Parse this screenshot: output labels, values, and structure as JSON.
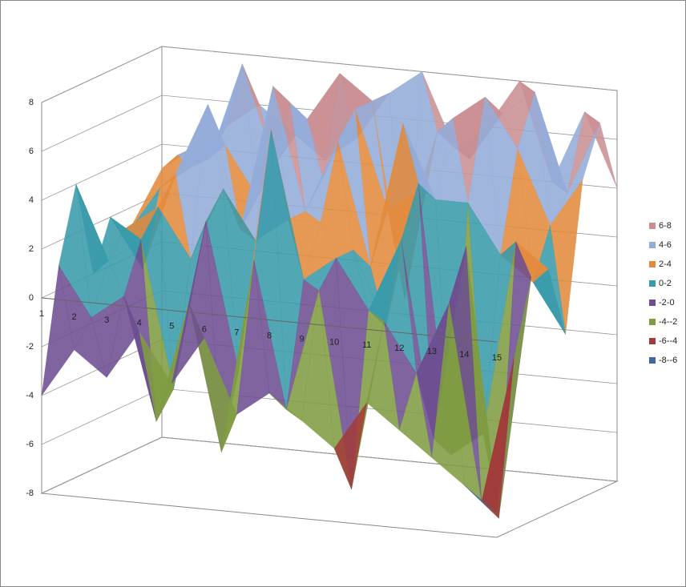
{
  "chart_data": {
    "type": "surface",
    "categories": [
      "1",
      "2",
      "3",
      "4",
      "5",
      "6",
      "7",
      "8",
      "9",
      "10",
      "11",
      "12",
      "13",
      "14",
      "15"
    ],
    "series": [
      {
        "values": [
          -4,
          -2,
          -3,
          -1,
          -3,
          -1,
          -4,
          -3,
          -4,
          -5,
          -3,
          -4,
          -5,
          -6,
          -7
        ]
      },
      {
        "values": [
          1,
          -1,
          0,
          -5,
          0,
          -6,
          2,
          -4,
          1,
          -7,
          0,
          -2,
          1,
          -7,
          -1
        ]
      },
      {
        "values": [
          4,
          1,
          2,
          -4,
          3,
          -3,
          7,
          1,
          2,
          0,
          3,
          -5,
          3,
          -8,
          2
        ]
      },
      {
        "values": [
          0,
          2,
          3,
          1,
          4,
          2,
          3,
          3,
          2,
          -1,
          5,
          -6,
          -5,
          3,
          2
        ]
      },
      {
        "values": [
          2,
          0,
          4,
          7,
          2,
          8,
          3,
          6,
          1,
          7,
          4,
          4,
          2,
          1,
          -1
        ]
      },
      {
        "values": [
          1,
          3,
          4,
          5,
          3,
          7,
          4,
          7,
          3,
          4,
          7,
          8,
          6,
          3,
          5
        ]
      },
      {
        "values": [
          2,
          4,
          4,
          8,
          4,
          6,
          8,
          7,
          -1,
          6,
          5,
          7,
          8,
          4,
          7
        ]
      },
      {
        "values": [
          3,
          4,
          5,
          6,
          5,
          4,
          5,
          7,
          8,
          5,
          6,
          8,
          4,
          7,
          4
        ]
      }
    ],
    "zlim": [
      -8,
      8
    ],
    "zticks": [
      -8,
      -6,
      -4,
      -2,
      0,
      2,
      4,
      6,
      8
    ],
    "legend_position": "right",
    "legend_bands": [
      {
        "label": "6-8",
        "color": "#c98f93"
      },
      {
        "label": "4-6",
        "color": "#94acd8"
      },
      {
        "label": "2-4",
        "color": "#e38b3d"
      },
      {
        "label": "0-2",
        "color": "#3a9bab"
      },
      {
        "label": "-2-0",
        "color": "#6d4f92"
      },
      {
        "label": "-4--2",
        "color": "#7f9c42"
      },
      {
        "label": "-6--4",
        "color": "#a23b3b"
      },
      {
        "label": "-8--6",
        "color": "#3e69a2"
      }
    ]
  }
}
